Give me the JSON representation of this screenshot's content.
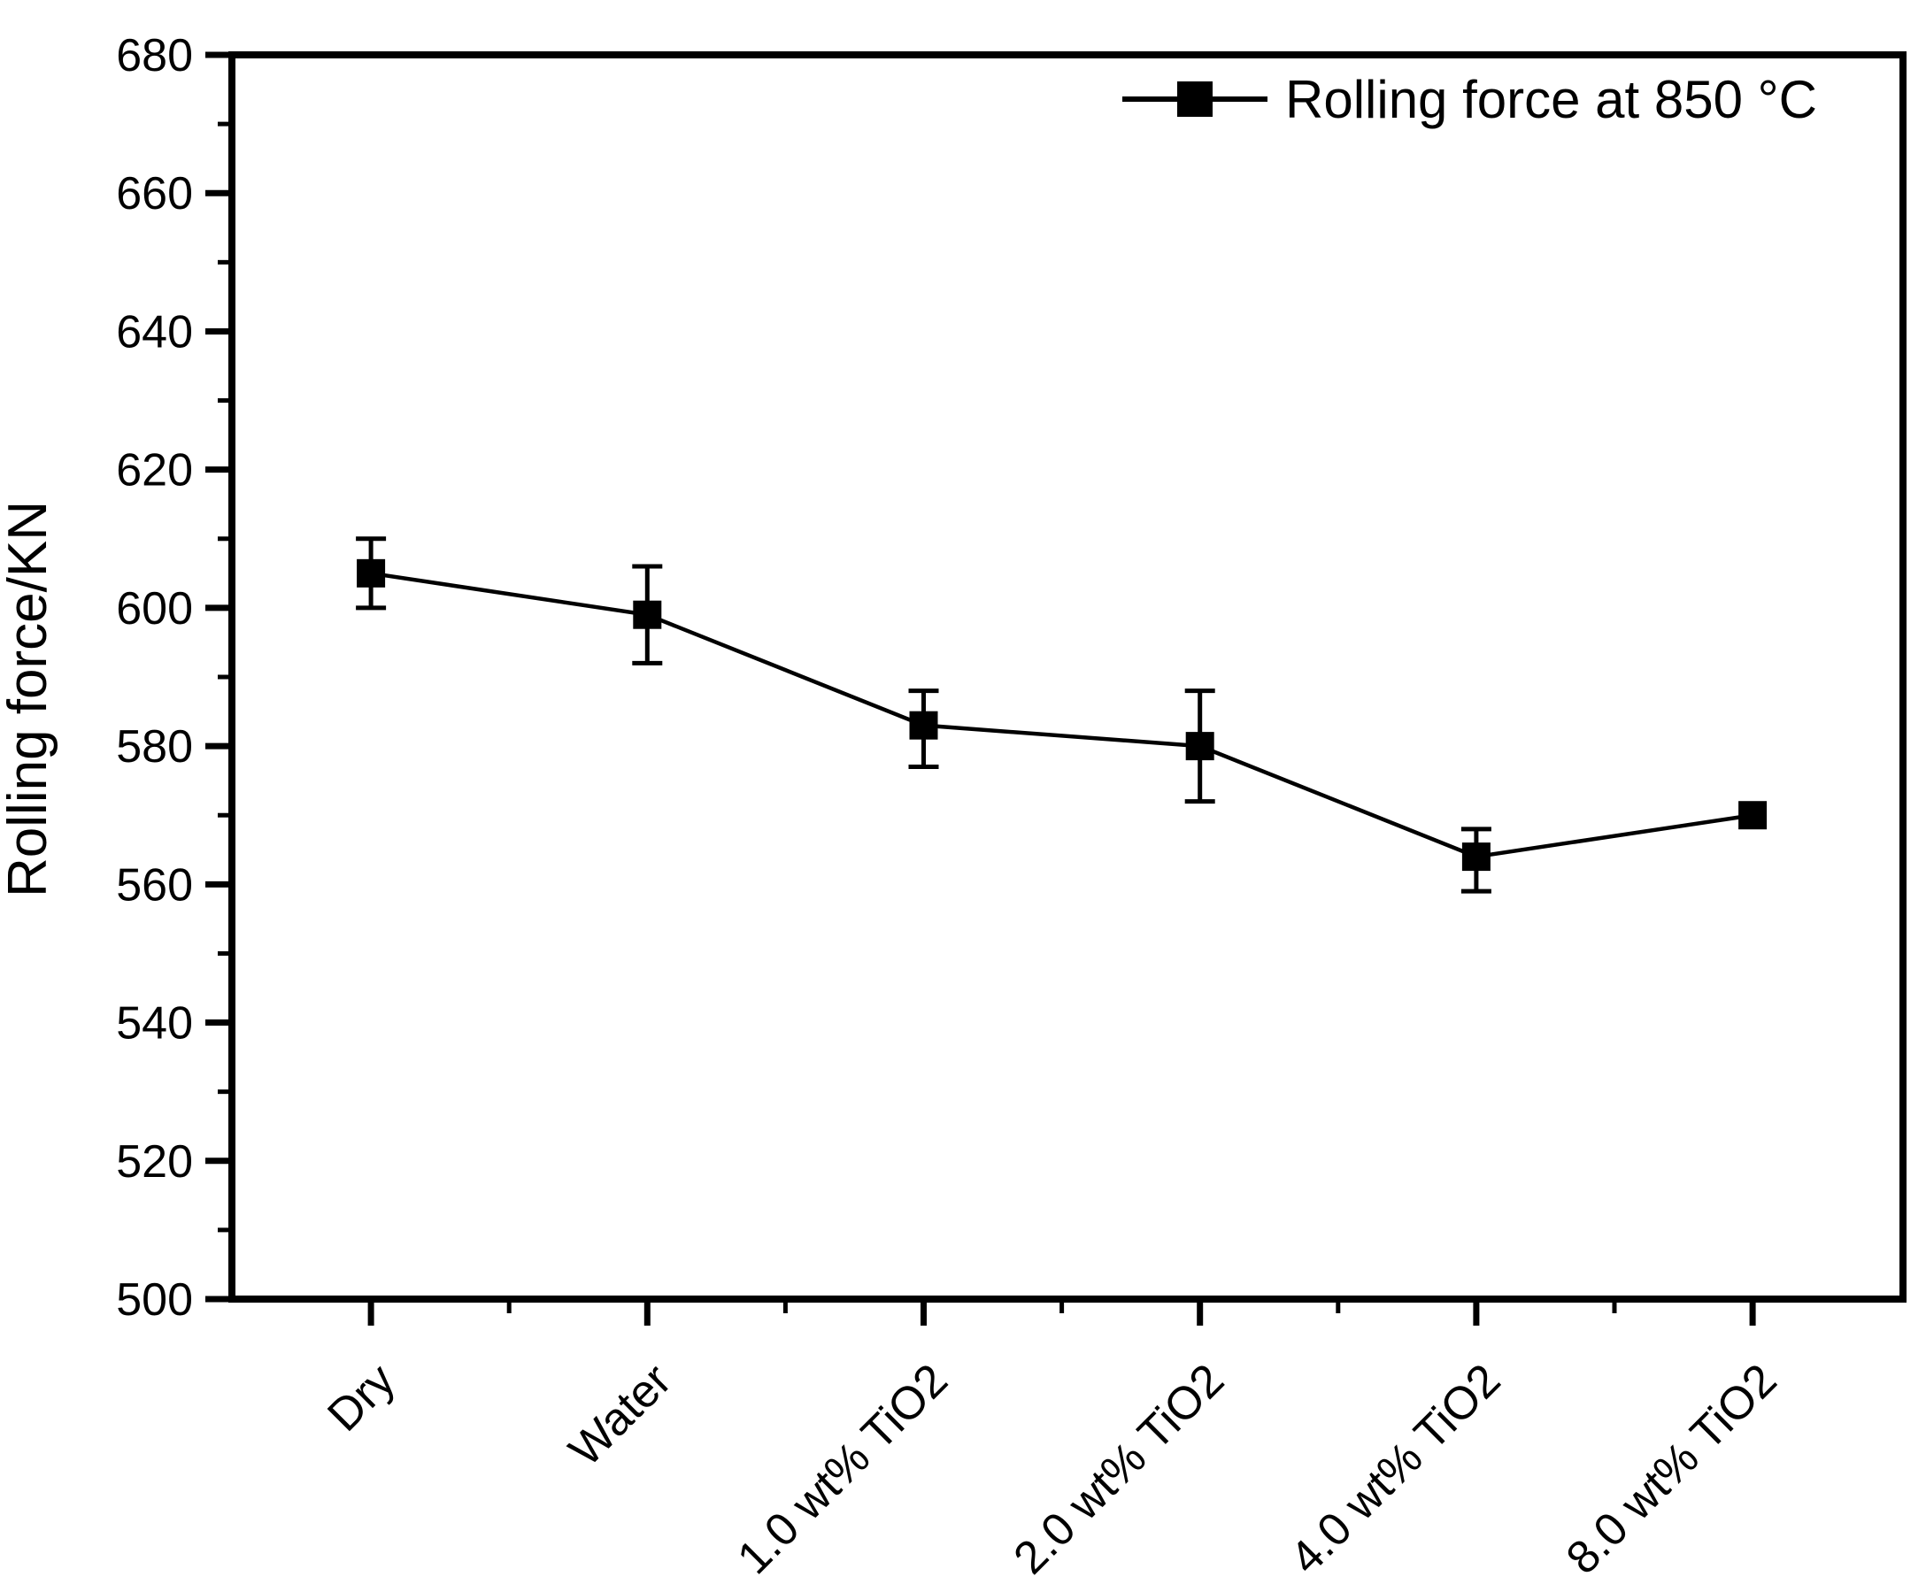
{
  "chart_data": {
    "type": "line",
    "title": "",
    "categories": [
      "Dry",
      "Water",
      "1.0 wt% TiO2",
      "2.0 wt% TiO2",
      "4.0 wt% TiO2",
      "8.0 wt% TiO2"
    ],
    "series": [
      {
        "name": "Rolling force at 850 °C",
        "values": [
          605,
          599,
          583,
          580,
          564,
          570
        ],
        "err_plus": [
          5,
          7,
          5,
          8,
          4,
          0
        ],
        "err_minus": [
          5,
          7,
          6,
          8,
          5,
          0
        ],
        "marker": "filled-square",
        "color": "#000000"
      }
    ],
    "xlabel": "",
    "ylabel": "Rolling force/KN",
    "ylim": [
      500,
      680
    ],
    "y_ticks": [
      500,
      520,
      540,
      560,
      580,
      600,
      620,
      640,
      660,
      680
    ],
    "y_minor_step": 10,
    "x_minor_ticks_between_categories": true,
    "grid": false,
    "legend_position": "top-right-inside",
    "axis_color": "#000000",
    "background_color": "#ffffff"
  }
}
